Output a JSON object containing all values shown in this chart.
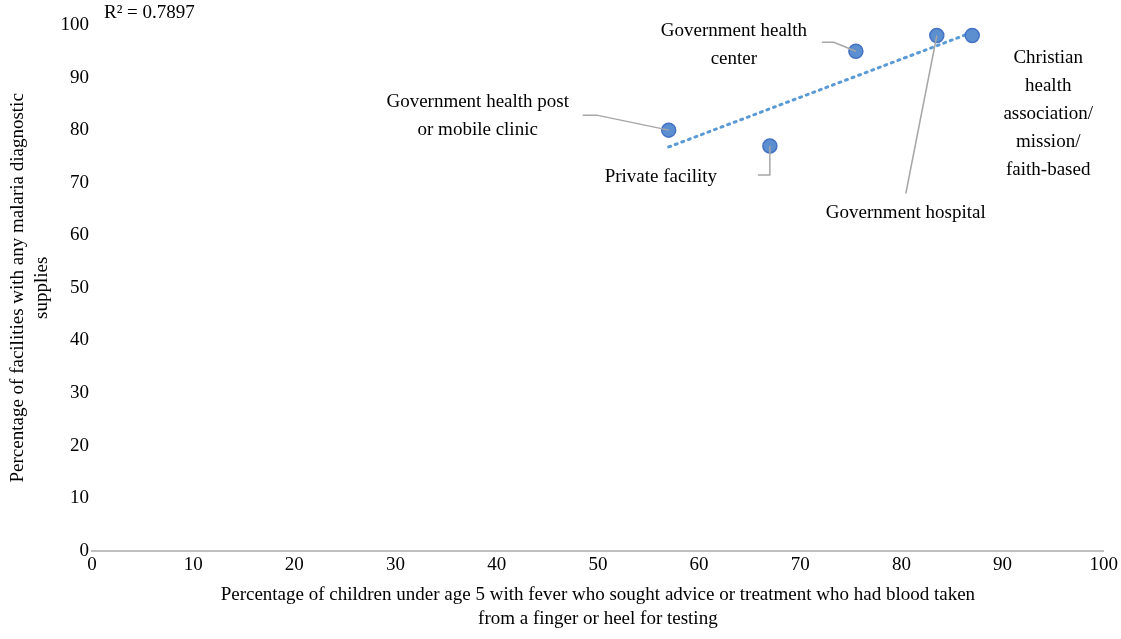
{
  "chart_data": {
    "type": "scatter",
    "xlabel": "Percentage of children under age 5 with fever who sought advice or treatment who had blood taken from a finger or heel for testing",
    "ylabel": "Percentage of facilities with any malaria diagnostic supplies",
    "series": [
      {
        "color": "#5b8fd0",
        "x": [
          57,
          67,
          75.5,
          83.5,
          87
        ],
        "values": [
          80,
          77,
          95,
          98,
          98
        ]
      },
      {
        "type": "line",
        "color": "#5b9bd5",
        "line_style": "dotted",
        "marker": "none",
        "x": [
          57,
          87
        ],
        "values": [
          76.8,
          98.6
        ]
      }
    ],
    "marker": "circle",
    "xlim": [
      0,
      100
    ],
    "xticks": [
      0,
      10,
      20,
      30,
      40,
      50,
      60,
      70,
      80,
      90,
      100
    ],
    "ylim": [
      0,
      100
    ],
    "yticks": [
      0,
      10,
      20,
      30,
      40,
      50,
      60,
      70,
      80,
      90,
      100
    ],
    "grid": false,
    "legend": false,
    "annotations": [
      "R² = 0.7897",
      {
        "text": "Government health post or mobile clinic",
        "x": 57,
        "y": 80
      },
      {
        "text": "Private facility",
        "x": 67,
        "y": 77
      },
      {
        "text": "Government health center",
        "x": 75.5,
        "y": 95
      },
      {
        "text": "Government hospital",
        "x": 83.5,
        "y": 98
      },
      {
        "text": "Christian health association/ mission/ faith-based",
        "x": 87,
        "y": 98
      }
    ]
  }
}
